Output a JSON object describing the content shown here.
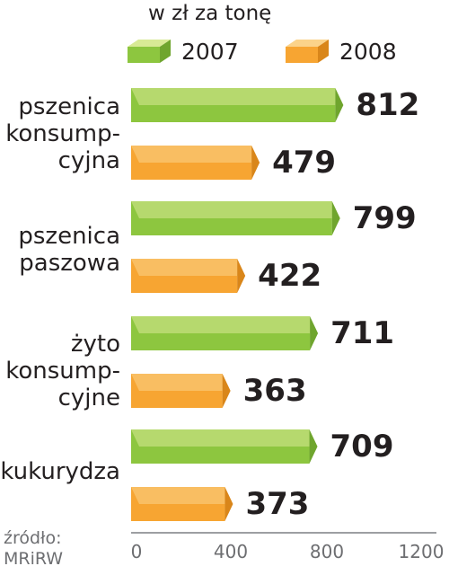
{
  "chart_data": {
    "type": "bar",
    "orientation": "horizontal",
    "unit_label": "w zł za tonę",
    "categories": [
      {
        "id": "pszenica-konsumpcyjna",
        "label": "pszenica\nkonsump-\ncyjna"
      },
      {
        "id": "pszenica-paszowa",
        "label": "pszenica\npaszowa"
      },
      {
        "id": "zyto-konsumpcyjne",
        "label": "żyto\nkonsump-\ncyjne"
      },
      {
        "id": "kukurydza",
        "label": "kukurydza"
      }
    ],
    "series": [
      {
        "name": "2007",
        "color": "#8dc63f",
        "values": [
          812,
          799,
          711,
          709
        ]
      },
      {
        "name": "2008",
        "color": "#f7a532",
        "values": [
          479,
          422,
          363,
          373
        ]
      }
    ],
    "xlim": [
      0,
      1200
    ],
    "xticks": [
      "0",
      "400",
      "800",
      "1200"
    ],
    "source": "źródło:\nMRiRW",
    "legend_position": "top"
  }
}
